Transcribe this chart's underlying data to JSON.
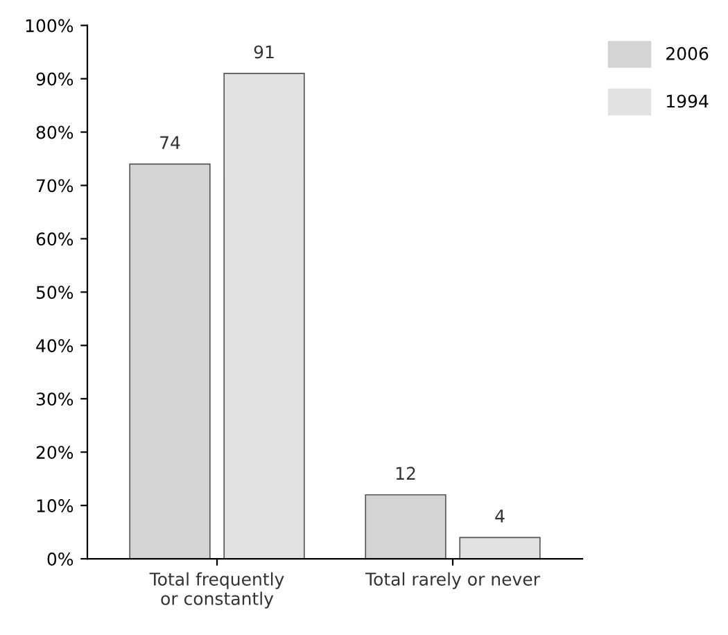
{
  "chart_data": {
    "type": "bar",
    "categories": [
      "Total frequently\nor constantly",
      "Total rarely or never"
    ],
    "series": [
      {
        "name": "2006",
        "color": "#d4d4d4",
        "values": [
          74,
          12
        ]
      },
      {
        "name": "1994",
        "color": "#e2e2e2",
        "values": [
          91,
          4
        ]
      }
    ],
    "ylim": [
      0,
      100
    ],
    "yticks": [
      {
        "value": 0,
        "label": "0%"
      },
      {
        "value": 10,
        "label": "10%"
      },
      {
        "value": 20,
        "label": "20%"
      },
      {
        "value": 30,
        "label": "30%"
      },
      {
        "value": 40,
        "label": "40%"
      },
      {
        "value": 50,
        "label": "50%"
      },
      {
        "value": 60,
        "label": "60%"
      },
      {
        "value": 70,
        "label": "70%"
      },
      {
        "value": 80,
        "label": "80%"
      },
      {
        "value": 90,
        "label": "90%"
      },
      {
        "value": 100,
        "label": "100%"
      }
    ],
    "data_labels": true,
    "grid": false,
    "legend": "top right"
  }
}
